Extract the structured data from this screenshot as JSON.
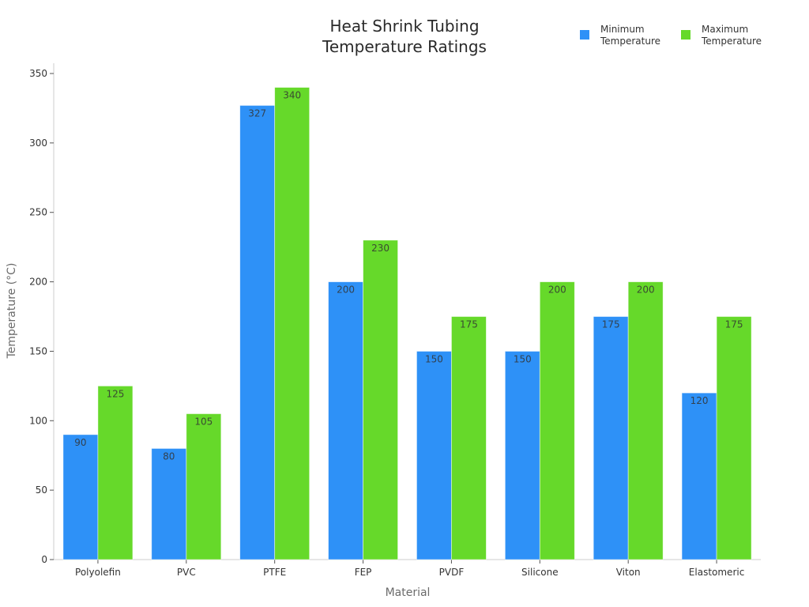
{
  "chart_data": {
    "type": "bar",
    "title": "Heat Shrink Tubing Temperature Ratings",
    "title_lines": [
      "Heat Shrink Tubing",
      "Temperature Ratings"
    ],
    "xlabel": "Material",
    "ylabel": "Temperature (°C)",
    "categories": [
      "Polyolefin",
      "PVC",
      "PTFE",
      "FEP",
      "PVDF",
      "Silicone",
      "Viton",
      "Elastomeric"
    ],
    "series": [
      {
        "name": "Minimum Temperature",
        "label_lines": [
          "Minimum",
          "Temperature"
        ],
        "color": "#2e91f7",
        "values": [
          90,
          80,
          327,
          200,
          150,
          150,
          175,
          120
        ]
      },
      {
        "name": "Maximum Temperature",
        "label_lines": [
          "Maximum",
          "Temperature"
        ],
        "color": "#66d92a",
        "values": [
          125,
          105,
          340,
          230,
          175,
          200,
          200,
          175
        ]
      }
    ],
    "ylim": [
      0,
      350
    ],
    "yticks": [
      0,
      50,
      100,
      150,
      200,
      250,
      300,
      350
    ],
    "grid": false,
    "legend_position": "top-right",
    "data_labels": true
  }
}
